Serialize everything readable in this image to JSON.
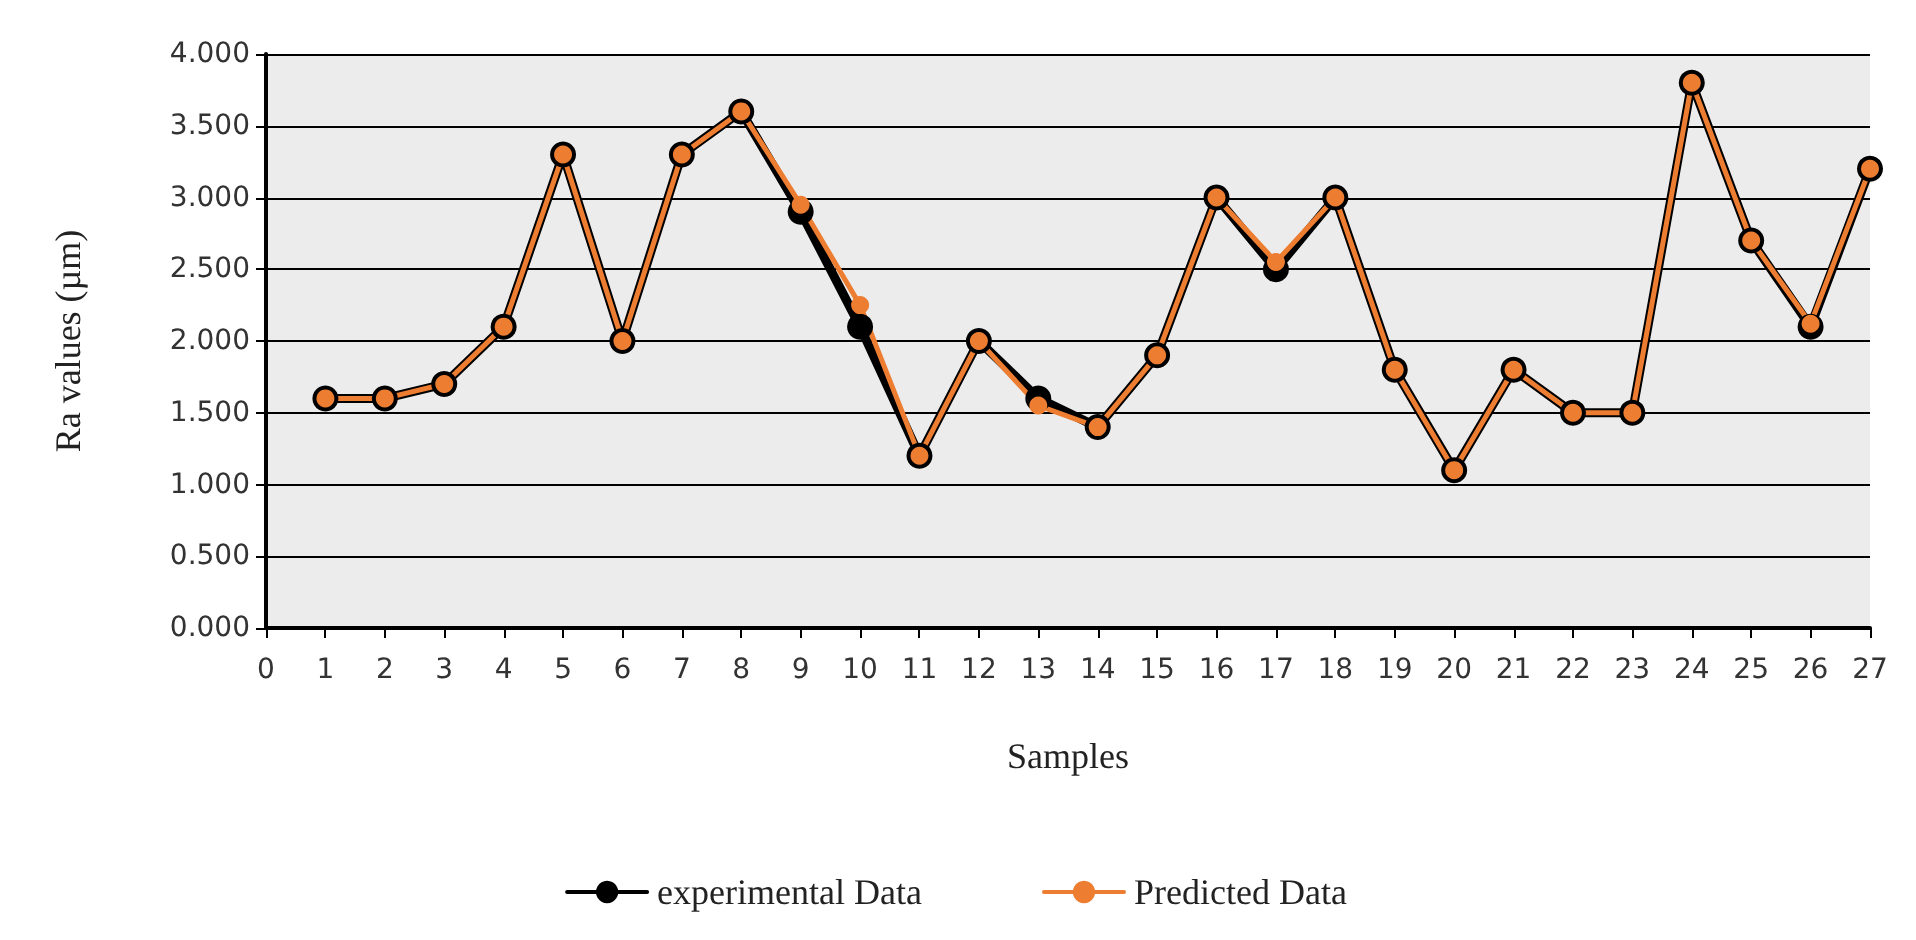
{
  "chart_data": {
    "type": "line",
    "xlabel": "Samples",
    "ylabel": "Ra values (µm)",
    "x": [
      1,
      2,
      3,
      4,
      5,
      6,
      7,
      8,
      9,
      10,
      11,
      12,
      13,
      14,
      15,
      16,
      17,
      18,
      19,
      20,
      21,
      22,
      23,
      24,
      25,
      26,
      27
    ],
    "series": [
      {
        "name": "experimental Data",
        "color": "#000000",
        "values": [
          1.6,
          1.6,
          1.7,
          2.1,
          3.3,
          2.0,
          3.3,
          3.6,
          2.9,
          2.1,
          1.2,
          2.0,
          1.6,
          1.4,
          1.9,
          3.0,
          2.5,
          3.0,
          1.8,
          1.1,
          1.8,
          1.5,
          1.5,
          3.8,
          2.7,
          2.1,
          3.2
        ]
      },
      {
        "name": "Predicted Data",
        "color": "#ed7d31",
        "values": [
          1.6,
          1.6,
          1.7,
          2.1,
          3.3,
          2.0,
          3.3,
          3.6,
          2.95,
          2.25,
          1.2,
          2.0,
          1.55,
          1.4,
          1.9,
          3.0,
          2.55,
          3.0,
          1.8,
          1.1,
          1.8,
          1.5,
          1.5,
          3.8,
          2.7,
          2.12,
          3.2
        ]
      }
    ],
    "xlim": [
      0,
      27
    ],
    "xticks": [
      0,
      1,
      2,
      3,
      4,
      5,
      6,
      7,
      8,
      9,
      10,
      11,
      12,
      13,
      14,
      15,
      16,
      17,
      18,
      19,
      20,
      21,
      22,
      23,
      24,
      25,
      26,
      27
    ],
    "ylim": [
      0,
      4
    ],
    "yticks": [
      {
        "value": 0,
        "label": "0.000"
      },
      {
        "value": 0.5,
        "label": "0.500"
      },
      {
        "value": 1,
        "label": "1.000"
      },
      {
        "value": 1.5,
        "label": "1.500"
      },
      {
        "value": 2,
        "label": "2.000"
      },
      {
        "value": 2.5,
        "label": "2.500"
      },
      {
        "value": 3,
        "label": "3.000"
      },
      {
        "value": 3.5,
        "label": "3.500"
      },
      {
        "value": 4,
        "label": "4.000"
      }
    ],
    "grid": "y",
    "legend": "bottom",
    "marker": "circle",
    "line_style": "solid"
  }
}
